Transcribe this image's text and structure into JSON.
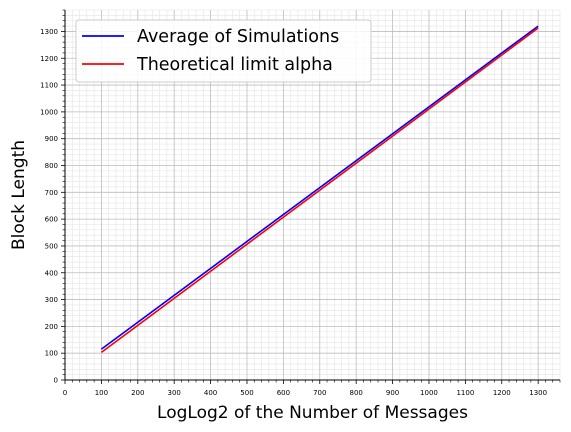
{
  "chart_data": {
    "type": "line",
    "title": "",
    "xlabel": "LogLog2 of the Number of Messages",
    "ylabel": "Block Length",
    "xlim": [
      0,
      1360
    ],
    "ylim": [
      0,
      1380
    ],
    "xticks": [
      0,
      100,
      200,
      300,
      400,
      500,
      600,
      700,
      800,
      900,
      1000,
      1100,
      1200,
      1300
    ],
    "yticks": [
      0,
      100,
      200,
      300,
      400,
      500,
      600,
      700,
      800,
      900,
      1000,
      1100,
      1200,
      1300
    ],
    "grid": "major and minor",
    "legend_position": "top-left",
    "series": [
      {
        "name": "Average of Simulations",
        "color": "#0000ff",
        "x": [
          100,
          1300
        ],
        "y": [
          115,
          1320
        ]
      },
      {
        "name": "Theoretical limit alpha",
        "color": "#ff0000",
        "x": [
          100,
          1300
        ],
        "y": [
          103,
          1313
        ]
      }
    ]
  }
}
